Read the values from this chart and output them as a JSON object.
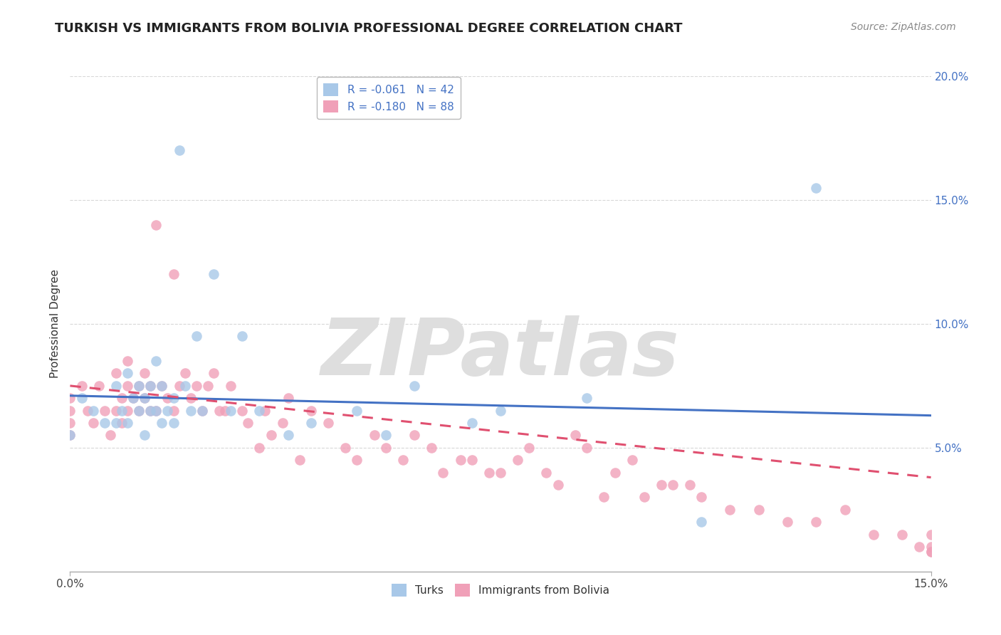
{
  "title": "TURKISH VS IMMIGRANTS FROM BOLIVIA PROFESSIONAL DEGREE CORRELATION CHART",
  "source": "Source: ZipAtlas.com",
  "ylabel": "Professional Degree",
  "watermark": "ZIPatlas",
  "xmin": 0.0,
  "xmax": 0.15,
  "ymin": 0.0,
  "ymax": 0.2,
  "yticks": [
    0.05,
    0.1,
    0.15,
    0.2
  ],
  "ytick_labels": [
    "5.0%",
    "10.0%",
    "15.0%",
    "20.0%"
  ],
  "grid_color": "#d8d8d8",
  "turks_scatter_x": [
    0.0,
    0.002,
    0.004,
    0.006,
    0.008,
    0.008,
    0.009,
    0.01,
    0.01,
    0.011,
    0.012,
    0.012,
    0.013,
    0.013,
    0.014,
    0.014,
    0.015,
    0.015,
    0.016,
    0.016,
    0.017,
    0.018,
    0.018,
    0.019,
    0.02,
    0.021,
    0.022,
    0.023,
    0.025,
    0.028,
    0.03,
    0.033,
    0.038,
    0.042,
    0.05,
    0.055,
    0.06,
    0.07,
    0.075,
    0.09,
    0.11,
    0.13
  ],
  "turks_scatter_y": [
    0.055,
    0.07,
    0.065,
    0.06,
    0.075,
    0.06,
    0.065,
    0.08,
    0.06,
    0.07,
    0.075,
    0.065,
    0.07,
    0.055,
    0.075,
    0.065,
    0.085,
    0.065,
    0.075,
    0.06,
    0.065,
    0.07,
    0.06,
    0.17,
    0.075,
    0.065,
    0.095,
    0.065,
    0.12,
    0.065,
    0.095,
    0.065,
    0.055,
    0.06,
    0.065,
    0.055,
    0.075,
    0.06,
    0.065,
    0.07,
    0.02,
    0.155
  ],
  "bolivia_scatter_x": [
    0.0,
    0.0,
    0.0,
    0.0,
    0.002,
    0.003,
    0.004,
    0.005,
    0.006,
    0.007,
    0.008,
    0.008,
    0.009,
    0.009,
    0.01,
    0.01,
    0.01,
    0.011,
    0.012,
    0.012,
    0.013,
    0.013,
    0.014,
    0.014,
    0.015,
    0.015,
    0.016,
    0.017,
    0.018,
    0.018,
    0.019,
    0.02,
    0.021,
    0.022,
    0.023,
    0.024,
    0.025,
    0.026,
    0.027,
    0.028,
    0.03,
    0.031,
    0.033,
    0.034,
    0.035,
    0.037,
    0.038,
    0.04,
    0.042,
    0.045,
    0.048,
    0.05,
    0.053,
    0.055,
    0.058,
    0.06,
    0.063,
    0.065,
    0.068,
    0.07,
    0.073,
    0.075,
    0.078,
    0.08,
    0.083,
    0.085,
    0.088,
    0.09,
    0.093,
    0.095,
    0.098,
    0.1,
    0.103,
    0.105,
    0.108,
    0.11,
    0.115,
    0.12,
    0.125,
    0.13,
    0.135,
    0.14,
    0.145,
    0.148,
    0.15,
    0.15,
    0.15,
    0.15
  ],
  "bolivia_scatter_y": [
    0.06,
    0.065,
    0.07,
    0.055,
    0.075,
    0.065,
    0.06,
    0.075,
    0.065,
    0.055,
    0.08,
    0.065,
    0.07,
    0.06,
    0.075,
    0.065,
    0.085,
    0.07,
    0.075,
    0.065,
    0.08,
    0.07,
    0.065,
    0.075,
    0.14,
    0.065,
    0.075,
    0.07,
    0.12,
    0.065,
    0.075,
    0.08,
    0.07,
    0.075,
    0.065,
    0.075,
    0.08,
    0.065,
    0.065,
    0.075,
    0.065,
    0.06,
    0.05,
    0.065,
    0.055,
    0.06,
    0.07,
    0.045,
    0.065,
    0.06,
    0.05,
    0.045,
    0.055,
    0.05,
    0.045,
    0.055,
    0.05,
    0.04,
    0.045,
    0.045,
    0.04,
    0.04,
    0.045,
    0.05,
    0.04,
    0.035,
    0.055,
    0.05,
    0.03,
    0.04,
    0.045,
    0.03,
    0.035,
    0.035,
    0.035,
    0.03,
    0.025,
    0.025,
    0.02,
    0.02,
    0.025,
    0.015,
    0.015,
    0.01,
    0.015,
    0.01,
    0.008,
    0.008
  ],
  "turks_line_x": [
    0.0,
    0.15
  ],
  "turks_line_y": [
    0.071,
    0.063
  ],
  "bolivia_line_x": [
    0.0,
    0.15
  ],
  "bolivia_line_y": [
    0.075,
    0.038
  ],
  "turks_color": "#a8c8e8",
  "bolivia_color": "#f0a0b8",
  "turks_line_color": "#4472c4",
  "bolivia_line_color": "#e05070",
  "background_color": "#ffffff",
  "title_fontsize": 13,
  "source_fontsize": 10,
  "axis_label_fontsize": 11,
  "legend_fontsize": 11,
  "tick_fontsize": 11,
  "legend_turks_label": "R = -0.061   N = 42",
  "legend_bolivia_label": "R = -0.180   N = 88",
  "bottom_legend_labels": [
    "Turks",
    "Immigrants from Bolivia"
  ]
}
